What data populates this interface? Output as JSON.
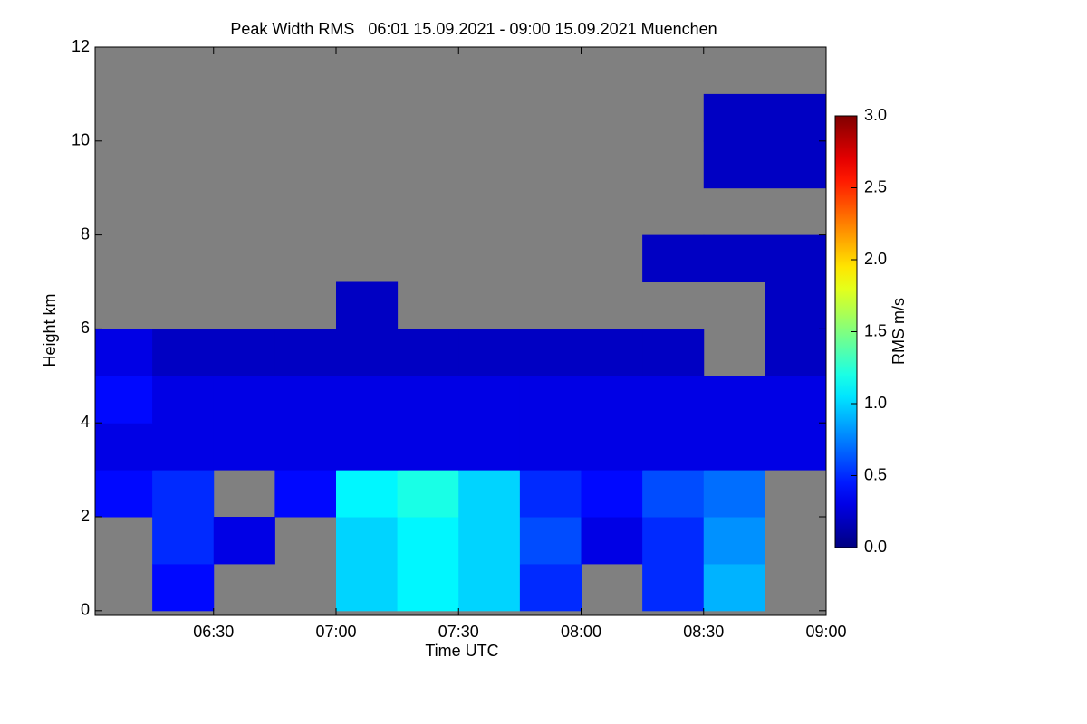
{
  "chart_data": {
    "type": "heatmap",
    "title": "Peak Width RMS   06:01 15.09.2021 - 09:00 15.09.2021 Muenchen",
    "x_label": "Time UTC",
    "y_label": "Height km",
    "colorbar_label": "RMS m/s",
    "colormap": "jet",
    "missing_color": "#808080",
    "xlim": [
      361,
      540
    ],
    "xticks": [
      {
        "value": 390,
        "label": "06:30"
      },
      {
        "value": 420,
        "label": "07:00"
      },
      {
        "value": 450,
        "label": "07:30"
      },
      {
        "value": 480,
        "label": "08:00"
      },
      {
        "value": 510,
        "label": "08:30"
      },
      {
        "value": 540,
        "label": "09:00"
      }
    ],
    "ylim": [
      -0.1,
      12
    ],
    "yticks": [
      0,
      2,
      4,
      6,
      8,
      10,
      12
    ],
    "clim": [
      0,
      3
    ],
    "cticks": [
      {
        "value": 0,
        "label": "0.0"
      },
      0.5,
      {
        "value": 1,
        "label": "1.0"
      },
      1.5,
      {
        "value": 2,
        "label": "2.0"
      },
      2.5,
      {
        "value": 3,
        "label": "3.0"
      }
    ],
    "xbins": [
      361,
      375,
      390,
      405,
      420,
      435,
      450,
      465,
      480,
      495,
      510,
      525,
      540
    ],
    "ybins": [
      0,
      1,
      2,
      3,
      4,
      5,
      6,
      7,
      8,
      9,
      10,
      11,
      12
    ],
    "values": [
      [
        null,
        0.4,
        null,
        null,
        1.0,
        1.1,
        1.0,
        0.5,
        null,
        0.5,
        0.9,
        null
      ],
      [
        null,
        0.5,
        0.3,
        null,
        1.0,
        1.1,
        1.0,
        0.6,
        0.3,
        0.5,
        0.8,
        null
      ],
      [
        0.4,
        0.5,
        null,
        0.4,
        1.1,
        1.2,
        1.0,
        0.5,
        0.4,
        0.6,
        0.7,
        null
      ],
      [
        0.3,
        0.3,
        0.3,
        0.3,
        0.3,
        0.3,
        0.3,
        0.3,
        0.3,
        0.3,
        0.3,
        0.3
      ],
      [
        0.4,
        0.3,
        0.3,
        0.3,
        0.3,
        0.3,
        0.3,
        0.3,
        0.3,
        0.3,
        0.3,
        0.3
      ],
      [
        0.3,
        0.2,
        0.2,
        0.2,
        0.2,
        0.2,
        0.2,
        0.2,
        0.2,
        0.2,
        null,
        0.2
      ],
      [
        null,
        null,
        null,
        null,
        0.2,
        null,
        null,
        null,
        null,
        null,
        null,
        0.2
      ],
      [
        null,
        null,
        null,
        null,
        null,
        null,
        null,
        null,
        null,
        0.2,
        0.2,
        0.2
      ],
      [
        null,
        null,
        null,
        null,
        null,
        null,
        null,
        null,
        null,
        null,
        null,
        null
      ],
      [
        null,
        null,
        null,
        null,
        null,
        null,
        null,
        null,
        null,
        null,
        0.2,
        0.2
      ],
      [
        null,
        null,
        null,
        null,
        null,
        null,
        null,
        null,
        null,
        null,
        0.2,
        0.2
      ],
      [
        null,
        null,
        null,
        null,
        null,
        null,
        null,
        null,
        null,
        null,
        null,
        null
      ]
    ]
  }
}
